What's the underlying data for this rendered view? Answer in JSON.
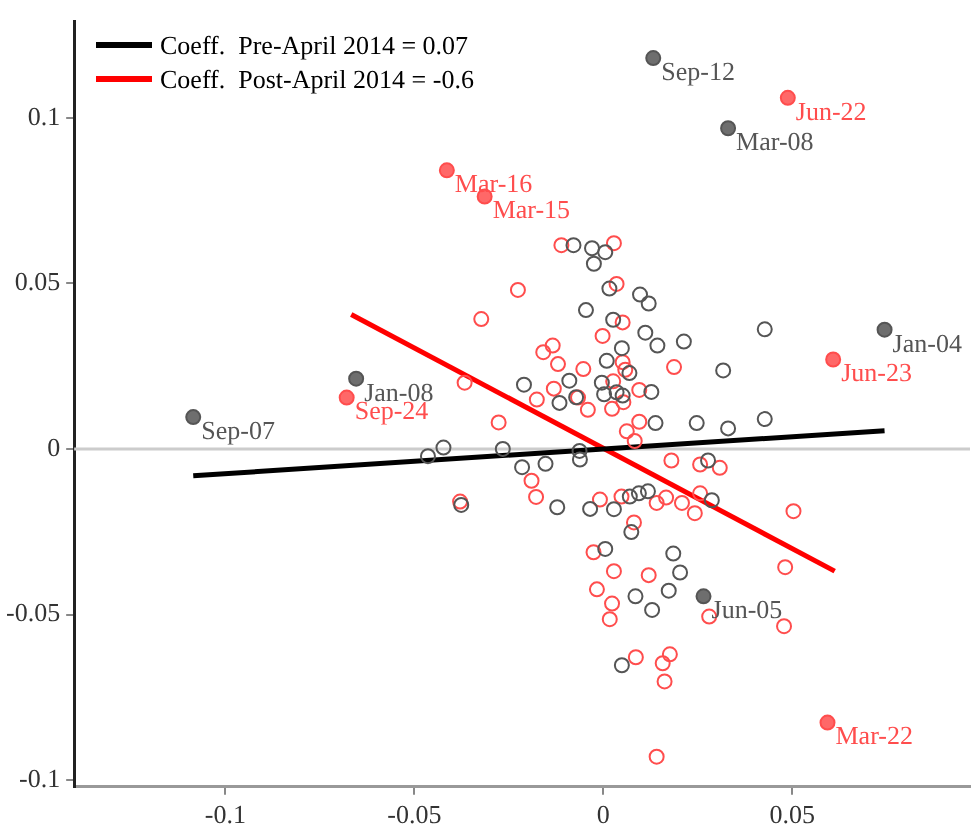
{
  "chart_data": {
    "type": "scatter",
    "xlim": [
      -0.14,
      0.097
    ],
    "ylim": [
      -0.102,
      0.129
    ],
    "xticks": [
      -0.1,
      -0.05,
      0,
      0.05
    ],
    "yticks": [
      -0.1,
      -0.05,
      0,
      0.05,
      0.1
    ],
    "grid": false,
    "legend": "top left",
    "ref_lines": [
      {
        "axis": "y",
        "value": 0,
        "color": "#cccccc"
      }
    ],
    "series": [
      {
        "marker": "circle",
        "color": "#555555",
        "x": [
          -0.0079,
          -0.003,
          0.0005,
          -0.0025,
          0.0016,
          0.0097,
          0.012,
          -0.0046,
          0.0026,
          0.0111,
          0.0143,
          0.0213,
          0.0427,
          0.0049,
          0.0009,
          0.0317,
          0.0069,
          -0.021,
          -0.009,
          -0.0004,
          -0.0116,
          -0.0072,
          0.0035,
          0.0002,
          0.0051,
          0.0127,
          0.0138,
          0.0247,
          0.033,
          0.0427,
          -0.0266,
          -0.0215,
          -0.0153,
          -0.0062,
          0.0277,
          -0.0122,
          -0.0035,
          0.0028,
          0.007,
          0.0094,
          0.0118,
          0.0287,
          0.0074,
          0.0005,
          0.0185,
          0.0203,
          0.0173,
          0.0085,
          0.0129,
          0.0049,
          -0.0464,
          -0.0423,
          -0.0376,
          -0.0063
        ],
        "values": [
          0.0615,
          0.0606,
          0.0594,
          0.0559,
          0.0484,
          0.0466,
          0.0439,
          0.0419,
          0.039,
          0.0351,
          0.0312,
          0.0324,
          0.0361,
          0.0304,
          0.0266,
          0.0237,
          0.0229,
          0.0194,
          0.0206,
          0.02,
          0.0139,
          0.0156,
          0.0171,
          0.0165,
          0.0161,
          0.0172,
          0.0078,
          0.0078,
          0.0062,
          0.009,
          0,
          -0.0055,
          -0.0045,
          -0.0032,
          -0.0035,
          -0.0176,
          -0.0181,
          -0.0182,
          -0.0144,
          -0.0134,
          -0.0128,
          -0.0155,
          -0.0251,
          -0.0302,
          -0.0316,
          -0.0373,
          -0.0428,
          -0.0445,
          -0.0486,
          -0.0653,
          -0.0022,
          0.0004,
          -0.0169,
          -0.0006
        ]
      },
      {
        "marker": "circle",
        "color": "#ff4d4d",
        "x": [
          -0.0111,
          0.0028,
          -0.0226,
          -0.0323,
          0.0035,
          0.0051,
          -0.0002,
          -0.0134,
          -0.0159,
          -0.012,
          -0.0053,
          0.0051,
          0.0058,
          0.0187,
          -0.0131,
          -0.0176,
          0.0026,
          0.0095,
          0.0023,
          -0.0067,
          -0.0277,
          -0.0041,
          0.0053,
          0.0095,
          0.018,
          0.0256,
          0.0308,
          -0.019,
          -0.0178,
          -0.0009,
          0.0048,
          0.0141,
          0.0166,
          0.0208,
          0.0242,
          0.0256,
          0.0503,
          0.0081,
          -0.0026,
          0.0028,
          0.012,
          0.0481,
          -0.0017,
          0.0023,
          0.0017,
          0.028,
          0.0478,
          0.0086,
          0.0157,
          0.0176,
          0.0162,
          0.0141,
          0.0062,
          0.0083,
          -0.0379,
          -0.0367
        ],
        "values": [
          0.0615,
          0.0621,
          0.048,
          0.0392,
          0.0498,
          0.0382,
          0.0341,
          0.0312,
          0.0292,
          0.0256,
          0.0241,
          0.0262,
          0.0239,
          0.0247,
          0.0182,
          0.0149,
          0.0204,
          0.0178,
          0.0121,
          0.0155,
          0.008,
          0.0118,
          0.0141,
          0.0082,
          -0.0035,
          -0.0047,
          -0.0057,
          -0.0096,
          -0.0145,
          -0.0153,
          -0.0144,
          -0.0163,
          -0.0147,
          -0.0163,
          -0.0194,
          -0.0134,
          -0.0188,
          -0.0222,
          -0.0312,
          -0.0369,
          -0.0381,
          -0.0357,
          -0.0424,
          -0.0467,
          -0.0514,
          -0.0506,
          -0.0535,
          -0.0629,
          -0.0647,
          -0.062,
          -0.0702,
          -0.0929,
          0.0053,
          0.0024,
          -0.0159,
          0.02
        ]
      },
      {
        "marker": "circle",
        "color": "#555555",
        "x": [
          0.0132,
          0.033,
          0.0744,
          -0.1085,
          -0.0654,
          0.0265
        ],
        "values": [
          0.118,
          0.0968,
          0.036,
          0.0096,
          0.0212,
          -0.0445
        ],
        "value_labels": [
          "Sep-12",
          "Mar-08",
          "Jan-04",
          "Sep-07",
          "Jan-08",
          "Jun-05"
        ]
      },
      {
        "marker": "circle",
        "color": "#ff4d4d",
        "x": [
          0.0488,
          -0.0414,
          -0.0314,
          -0.0679,
          0.0608,
          0.0593
        ],
        "values": [
          0.106,
          0.0841,
          0.0762,
          0.0155,
          0.027,
          -0.0826
        ],
        "value_labels": [
          "Jun-22",
          "Mar-16",
          "Mar-15",
          "Sep-24",
          "Jun-23",
          "Mar-22"
        ]
      },
      {
        "type": "line",
        "name": "Coeff.  Pre-April 2014 = 0.07",
        "color": "#000000",
        "x": [
          -0.1085,
          0.0744
        ],
        "values": [
          -0.0081,
          0.0055
        ]
      },
      {
        "type": "line",
        "name": "Coeff.  Post-April 2014 = -0.6",
        "color": "#ff0000",
        "x": [
          -0.0667,
          0.0612
        ],
        "values": [
          0.0406,
          -0.0369
        ]
      }
    ]
  }
}
